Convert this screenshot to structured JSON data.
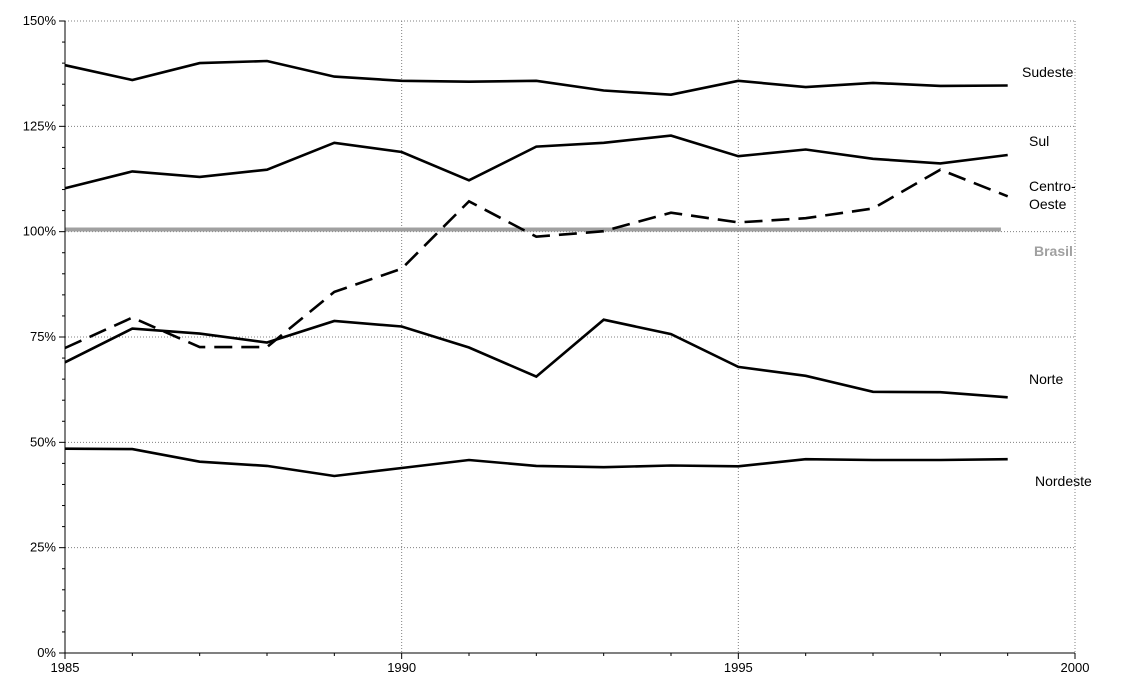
{
  "chart_data": {
    "type": "line",
    "title": "",
    "xlabel": "",
    "ylabel": "",
    "xlim": [
      1985,
      2000
    ],
    "ylim": [
      0,
      150
    ],
    "x_ticks": [
      1985,
      1990,
      1995,
      2000
    ],
    "x_tick_labels": [
      "1985",
      "1990",
      "1995",
      "2000"
    ],
    "y_ticks": [
      0,
      25,
      50,
      75,
      100,
      125,
      150
    ],
    "y_tick_labels": [
      "0%",
      "25%",
      "50%",
      "75%",
      "100%",
      "125%",
      "150%"
    ],
    "grid": {
      "vertical_major": true,
      "horizontal_major": true,
      "style": "dotted"
    },
    "x": [
      1985,
      1986,
      1987,
      1988,
      1989,
      1990,
      1991,
      1992,
      1993,
      1994,
      1995,
      1996,
      1997,
      1998,
      1999
    ],
    "series": [
      {
        "name": "Sudeste",
        "line_style": "solid",
        "color": "#000000",
        "values": [
          139.5,
          136,
          140,
          140.5,
          136.8,
          135.8,
          135.6,
          135.8,
          133.5,
          132.5,
          135.8,
          134.3,
          135.3,
          134.6,
          134.7
        ]
      },
      {
        "name": "Sul",
        "line_style": "solid",
        "color": "#000000",
        "values": [
          110.3,
          114.3,
          113,
          114.7,
          121.1,
          118.9,
          112.2,
          120.2,
          121.1,
          122.8,
          117.9,
          119.5,
          117.3,
          116.2,
          118.2
        ]
      },
      {
        "name": "Centro-Oeste",
        "line_style": "dashed",
        "color": "#000000",
        "values": [
          72.4,
          79.6,
          72.6,
          72.6,
          85.7,
          91.2,
          107.2,
          98.8,
          100.1,
          104.5,
          102.2,
          103.2,
          105.5,
          114.7,
          108.4
        ]
      },
      {
        "name": "Norte",
        "line_style": "solid",
        "color": "#000000",
        "values": [
          69,
          77,
          75.8,
          73.7,
          78.8,
          77.5,
          72.5,
          65.6,
          79.1,
          75.7,
          67.9,
          65.8,
          62,
          61.9,
          60.7
        ]
      },
      {
        "name": "Nordeste",
        "line_style": "solid",
        "color": "#000000",
        "values": [
          48.5,
          48.4,
          45.4,
          44.4,
          42,
          43.9,
          45.8,
          44.4,
          44.1,
          44.5,
          44.3,
          46,
          45.8,
          45.8,
          46
        ]
      }
    ],
    "reference_line": {
      "name": "Brasil",
      "value": 100.5,
      "color": "#a0a0a0"
    },
    "series_label_texts": {
      "Sudeste": "Sudeste",
      "Sul": "Sul",
      "Centro-Oeste": [
        "Centro-",
        "Oeste"
      ],
      "Norte": "Norte",
      "Nordeste": "Nordeste",
      "Brasil": "Brasil"
    }
  }
}
